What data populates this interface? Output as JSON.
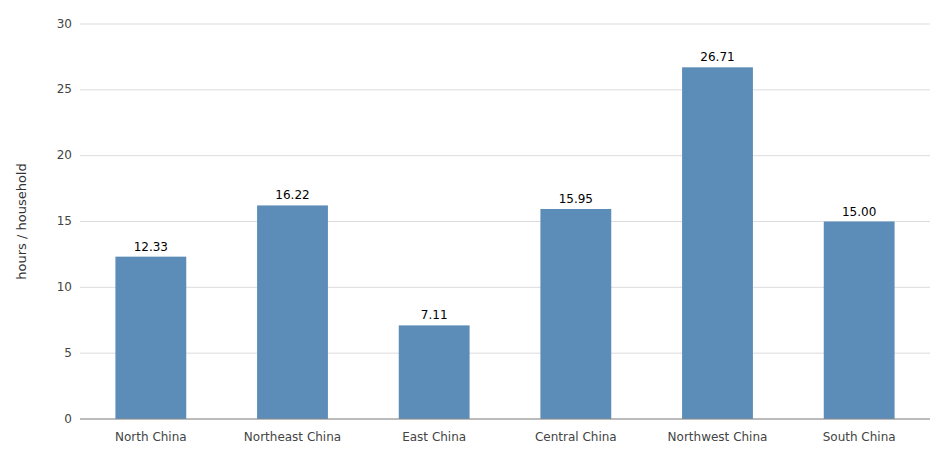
{
  "chart_data": {
    "type": "bar",
    "categories": [
      "North China",
      "Northeast China",
      "East China",
      "Central China",
      "Northwest China",
      "South China"
    ],
    "values": [
      12.33,
      16.22,
      7.11,
      15.95,
      26.71,
      15.0
    ],
    "value_labels": [
      "12.33",
      "16.22",
      "7.11",
      "15.95",
      "26.71",
      "15.00"
    ],
    "data_labels": true,
    "color": "#5b8db8",
    "ylabel": "hours / household",
    "ylim": [
      0,
      30
    ],
    "yticks": [
      0,
      5,
      10,
      15,
      20,
      25,
      30
    ],
    "grid": true
  }
}
